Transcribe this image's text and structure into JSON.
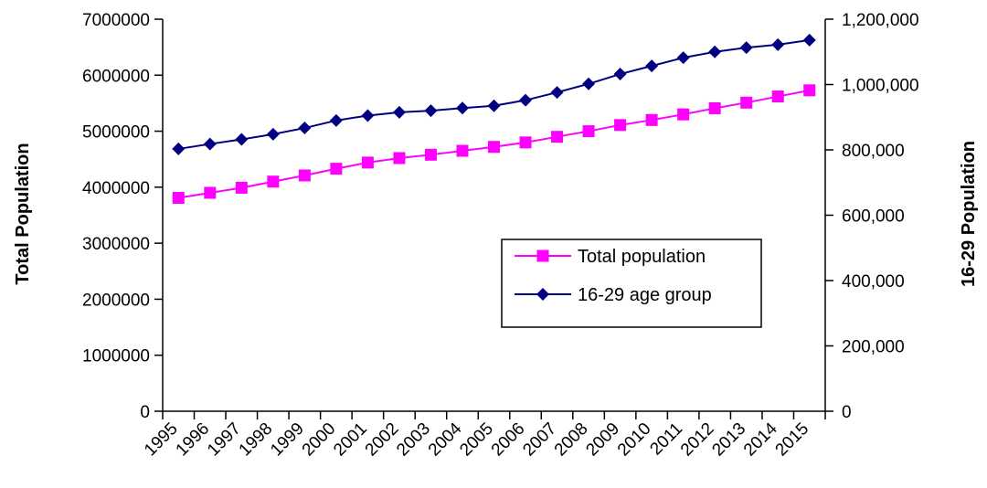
{
  "chart_data": {
    "type": "line",
    "categories": [
      "1995",
      "1996",
      "1997",
      "1998",
      "1999",
      "2000",
      "2001",
      "2002",
      "2003",
      "2004",
      "2005",
      "2006",
      "2007",
      "2008",
      "2009",
      "2010",
      "2011",
      "2012",
      "2013",
      "2014",
      "2015"
    ],
    "ylabel_left": "Total Population",
    "ylabel_right": "16-29 Population",
    "left_axis": {
      "ylim": [
        0,
        7000000
      ],
      "ticks": [
        0,
        1000000,
        2000000,
        3000000,
        4000000,
        5000000,
        6000000,
        7000000
      ],
      "tick_labels": [
        "0",
        "1000000",
        "2000000",
        "3000000",
        "4000000",
        "5000000",
        "6000000",
        "7000000"
      ]
    },
    "right_axis": {
      "ylim": [
        0,
        1200000
      ],
      "ticks": [
        0,
        200000,
        400000,
        600000,
        800000,
        1000000,
        1200000
      ],
      "tick_labels": [
        "0",
        "200,000",
        "400,000",
        "600,000",
        "800,000",
        "1,000,000",
        "1,200,000"
      ]
    },
    "series": [
      {
        "name": "Total population",
        "axis": "left",
        "color": "#FF00FF",
        "marker": "square",
        "values": [
          3810000,
          3900000,
          3990000,
          4100000,
          4210000,
          4330000,
          4440000,
          4520000,
          4580000,
          4650000,
          4720000,
          4800000,
          4900000,
          5000000,
          5110000,
          5200000,
          5300000,
          5410000,
          5510000,
          5620000,
          5730000
        ]
      },
      {
        "name": "16-29 age group",
        "axis": "right",
        "color": "#000080",
        "marker": "diamond",
        "values": [
          803000,
          818000,
          832000,
          848000,
          867000,
          890000,
          905000,
          915000,
          920000,
          928000,
          935000,
          952000,
          976000,
          1002000,
          1032000,
          1057000,
          1082000,
          1100000,
          1113000,
          1122000,
          1136000
        ]
      }
    ],
    "legend_position": "center-right",
    "grid": false
  }
}
